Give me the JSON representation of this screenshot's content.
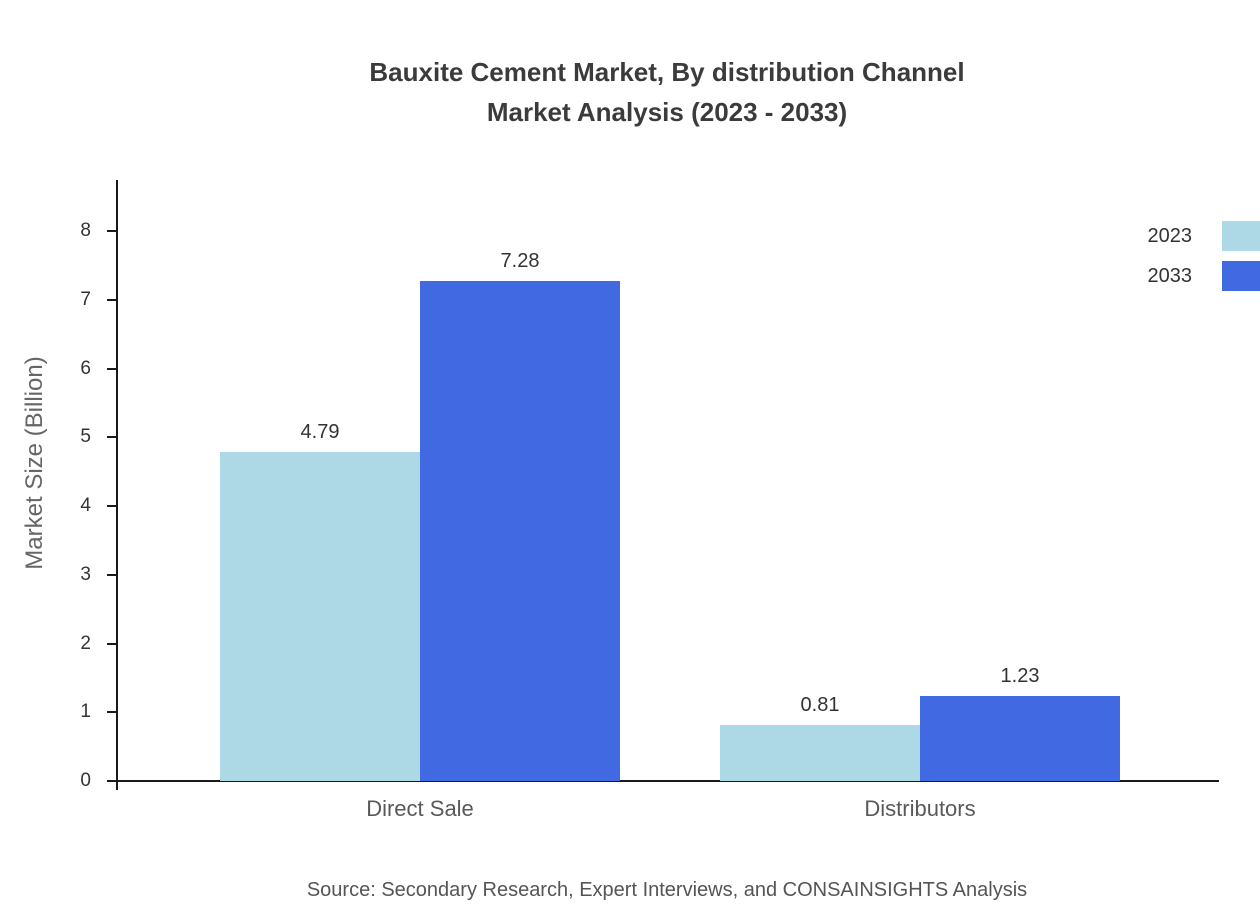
{
  "chart_data": {
    "type": "bar",
    "title": "Bauxite Cement Market, By distribution Channel",
    "subtitle": "Market Analysis (2023 - 2033)",
    "categories": [
      "Direct Sale",
      "Distributors"
    ],
    "series": [
      {
        "name": "2023",
        "color": "#ADD8E6",
        "values": [
          4.79,
          0.81
        ]
      },
      {
        "name": "2033",
        "color": "#4169E1",
        "values": [
          7.28,
          1.23
        ]
      }
    ],
    "value_labels": [
      [
        "4.79",
        "0.81"
      ],
      [
        "7.28",
        "1.23"
      ]
    ],
    "xlabel": "",
    "ylabel": "Market Size (Billion)",
    "ylim": [
      0,
      8
    ],
    "ytick_step": 1,
    "grid": false,
    "legend_position": "top-right",
    "source": "Source: Secondary Research, Expert Interviews, and CONSAINSIGHTS Analysis"
  }
}
